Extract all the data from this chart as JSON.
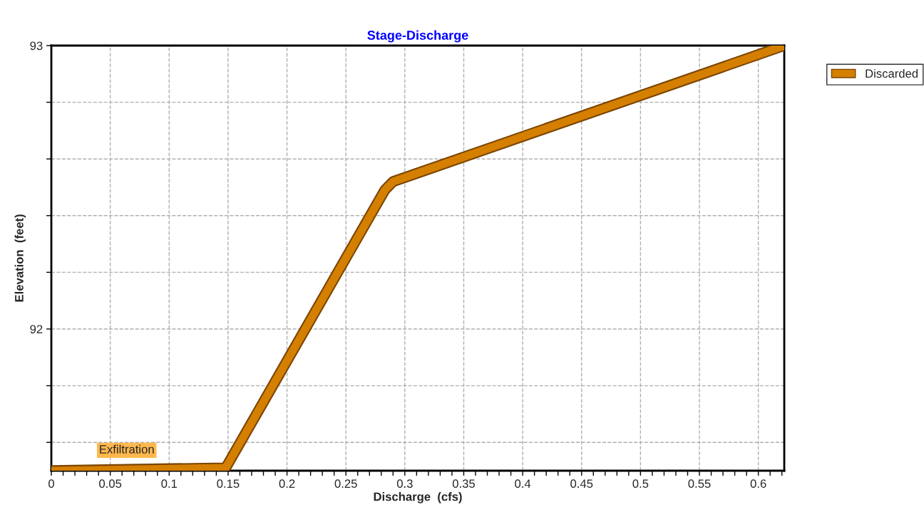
{
  "chart_data": {
    "type": "line",
    "title": "Stage-Discharge",
    "xlabel": "Discharge  (cfs)",
    "ylabel": "Elevation  (feet)",
    "x": [
      0,
      0.148,
      0.283,
      0.29,
      0.622
    ],
    "series": [
      {
        "name": "Discarded",
        "color": "#d47f00",
        "values": [
          91.5,
          91.51,
          92.49,
          92.52,
          93.0
        ]
      }
    ],
    "annotations": [
      "Exfiltration"
    ],
    "xlim": [
      0,
      0.622
    ],
    "ylim": [
      91.5,
      93.0
    ],
    "xticks": [
      0,
      {
        "value": 0.01,
        "label": null
      },
      {
        "value": 0.02,
        "label": null
      },
      {
        "value": 0.03,
        "label": null
      },
      {
        "value": 0.04,
        "label": null
      },
      0.05,
      {
        "value": 0.06,
        "label": null
      },
      {
        "value": 0.07,
        "label": null
      },
      {
        "value": 0.08,
        "label": null
      },
      {
        "value": 0.09,
        "label": null
      },
      0.1,
      {
        "value": 0.11,
        "label": null
      },
      {
        "value": 0.12,
        "label": null
      },
      {
        "value": 0.13,
        "label": null
      },
      {
        "value": 0.14,
        "label": null
      },
      0.15,
      {
        "value": 0.16,
        "label": null
      },
      {
        "value": 0.17,
        "label": null
      },
      {
        "value": 0.18,
        "label": null
      },
      {
        "value": 0.19,
        "label": null
      },
      0.2,
      {
        "value": 0.21,
        "label": null
      },
      {
        "value": 0.22,
        "label": null
      },
      {
        "value": 0.23,
        "label": null
      },
      {
        "value": 0.24,
        "label": null
      },
      0.25,
      {
        "value": 0.26,
        "label": null
      },
      {
        "value": 0.27,
        "label": null
      },
      {
        "value": 0.28,
        "label": null
      },
      {
        "value": 0.29,
        "label": null
      },
      0.3,
      {
        "value": 0.31,
        "label": null
      },
      {
        "value": 0.32,
        "label": null
      },
      {
        "value": 0.33,
        "label": null
      },
      {
        "value": 0.34,
        "label": null
      },
      0.35,
      {
        "value": 0.36,
        "label": null
      },
      {
        "value": 0.37,
        "label": null
      },
      {
        "value": 0.38,
        "label": null
      },
      {
        "value": 0.39,
        "label": null
      },
      0.4,
      {
        "value": 0.41,
        "label": null
      },
      {
        "value": 0.42,
        "label": null
      },
      {
        "value": 0.43,
        "label": null
      },
      {
        "value": 0.44,
        "label": null
      },
      0.45,
      {
        "value": 0.46,
        "label": null
      },
      {
        "value": 0.47,
        "label": null
      },
      {
        "value": 0.48,
        "label": null
      },
      {
        "value": 0.49,
        "label": null
      },
      0.5,
      {
        "value": 0.51,
        "label": null
      },
      {
        "value": 0.52,
        "label": null
      },
      {
        "value": 0.53,
        "label": null
      },
      {
        "value": 0.54,
        "label": null
      },
      0.55,
      {
        "value": 0.56,
        "label": null
      },
      {
        "value": 0.57,
        "label": null
      },
      {
        "value": 0.58,
        "label": null
      },
      {
        "value": 0.59,
        "label": null
      },
      0.6,
      {
        "value": 0.61,
        "label": null
      },
      {
        "value": 0.62,
        "label": null
      }
    ],
    "yticks": [
      {
        "value": 91.6,
        "label": null
      },
      {
        "value": 91.8,
        "label": null
      },
      92,
      {
        "value": 92.2,
        "label": null
      },
      {
        "value": 92.4,
        "label": null
      },
      {
        "value": 92.6,
        "label": null
      },
      {
        "value": 92.8,
        "label": null
      },
      93
    ],
    "grid": true,
    "legend": "top right",
    "line_style": "solid"
  }
}
